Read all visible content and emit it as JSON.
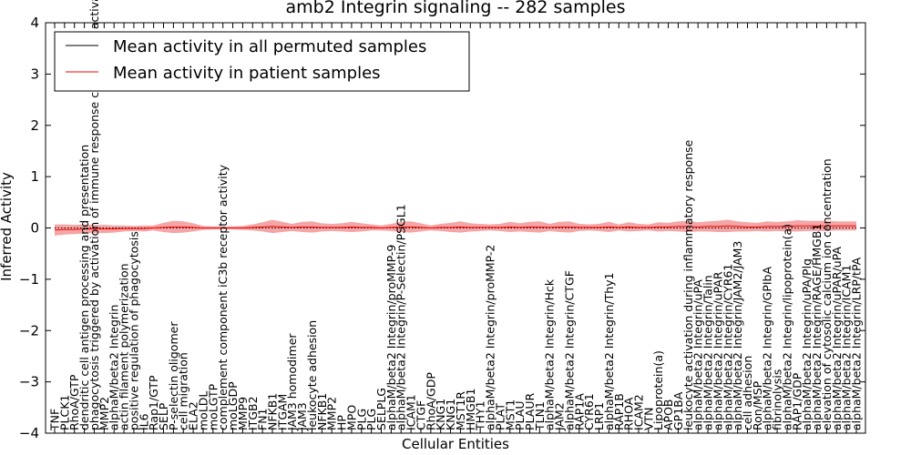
{
  "chart_data": {
    "type": "line",
    "title": "amb2 Integrin signaling -- 282 samples",
    "xlabel": "Cellular Entities",
    "ylabel": "Inferred Activity",
    "ylim": [
      -4,
      4
    ],
    "yticks": [
      -4,
      -3,
      -2,
      -1,
      0,
      1,
      2,
      3,
      4
    ],
    "grid": false,
    "legend_position": "top-left",
    "categories": [
      "TNF",
      "PLCK1",
      "RhoA/GTP",
      "dendritic cell antigen processing and presentation",
      "phagocytosis triggered by activation of immune response cell surface activating receptor",
      "MMP2",
      "alphaM/beta2 Integrin",
      "actin filament polymerization",
      "positive regulation of phagocytosis",
      "IL6",
      "Rap1/GTP",
      "SELP",
      "P-selectin oligomer",
      "cell migration",
      "ELA2",
      "moLDL",
      "moLGTP",
      "complement component iC3b receptor activity",
      "moLGDP",
      "MMP9",
      "ITGB2",
      "FN1",
      "NFKB1",
      "ITGAM",
      "JAM3 homodimer",
      "JAM3",
      "leukocyte adhesion",
      "NFKB1",
      "MMP2",
      "HP",
      "MPO",
      "PLG",
      "PLG",
      "SELPLG",
      "alphaM/beta2 Integrin/proMMP-9",
      "alphaM/beta2 Integrin/P-Selectin/PSGL1",
      "ICAM1",
      "CTGF",
      "RhoA/GDP",
      "KNG1",
      "KNG1",
      "MST1R",
      "HMGB1",
      "THY1",
      "alphaM/beta2 Integrin/proMMP-2",
      "PLAT",
      "MST1",
      "PLAU",
      "PLAUR",
      "TLN1",
      "alphaM/beta2 Integrin/Hck",
      "JAM2",
      "alphaM/beta2 Integrin/CTGF",
      "RAP1A",
      "CYR61",
      "LRP1",
      "alphaM/beta2 Integrin/Thy1",
      "RAP1B",
      "RHOA",
      "ICAM2",
      "VTN",
      "Lipoprotein(a)",
      "APOB",
      "GP1BA",
      "leukocyte activation during inflammatory response",
      "alphaM/beta2 Integrin/uPA",
      "alphaM/beta2 Integrin/Talin",
      "alphaM/beta2 Integrin/uPAR",
      "alphaM/beta2 Integrin/CYR61",
      "alphaM/beta2 Integrin/JAM2/JAM3",
      "cell adhesion",
      "Ron/MSP",
      "alphaM/beta2 Integrin/GPIbA",
      "fibrinolysis",
      "alphaM/beta2 Integrin/lipoprotein(a)",
      "RAP1/GDP",
      "alphaM/beta2 Integrin/uPA/Plg",
      "alphaM/beta2 Integrin/RAGE/HMGB1",
      "elevation of cytosolic calcium ion concentration",
      "alphaM/beta2 Integrin/uPAR/uPA",
      "alphaM/beta2 Integrin/ICAM1",
      "alphaM/beta2 Integrin/LRP/tPA"
    ],
    "series": [
      {
        "name": "Mean activity in all permuted samples",
        "color": "#000000",
        "style": "dotted",
        "values": [
          0,
          0,
          0,
          0,
          0,
          0,
          0,
          0,
          0,
          0,
          0,
          0,
          0,
          0,
          0,
          0,
          0,
          0,
          0,
          0,
          0,
          0,
          0,
          0,
          0,
          0,
          0,
          0,
          0,
          0,
          0,
          0,
          0,
          0,
          0,
          0,
          0,
          0,
          0,
          0,
          0,
          0,
          0,
          0,
          0,
          0,
          0,
          0,
          0,
          0,
          0,
          0,
          0,
          0,
          0,
          0,
          0,
          0,
          0,
          0,
          0,
          0,
          0,
          0,
          0,
          0,
          0,
          0,
          0,
          0,
          0,
          0,
          0,
          0,
          0,
          0,
          0,
          0,
          0,
          0,
          0,
          0
        ]
      },
      {
        "name": "Mean activity in patient samples",
        "color": "#ff0000",
        "band_color": "#f08080",
        "values": [
          -0.04,
          -0.03,
          -0.03,
          -0.02,
          -0.02,
          -0.02,
          -0.02,
          -0.01,
          -0.01,
          -0.01,
          0.0,
          0.01,
          0.02,
          0.02,
          0.01,
          0.0,
          0.0,
          0.0,
          0.0,
          0.0,
          0.01,
          0.02,
          0.03,
          0.02,
          0.01,
          0.02,
          0.02,
          0.01,
          0.01,
          0.01,
          0.02,
          0.01,
          0.01,
          0.0,
          0.01,
          0.02,
          0.02,
          0.01,
          0.0,
          0.01,
          0.01,
          0.02,
          0.01,
          0.01,
          0.01,
          0.01,
          0.02,
          0.01,
          0.02,
          0.02,
          0.01,
          0.02,
          0.02,
          0.01,
          0.01,
          0.01,
          0.02,
          0.01,
          0.02,
          0.01,
          0.01,
          0.02,
          0.02,
          0.03,
          0.03,
          0.02,
          0.03,
          0.03,
          0.04,
          0.03,
          0.02,
          0.02,
          0.03,
          0.03,
          0.03,
          0.04,
          0.04,
          0.04,
          0.04,
          0.04,
          0.04,
          0.04
        ],
        "band": [
          0.11,
          0.1,
          0.09,
          0.09,
          0.08,
          0.08,
          0.07,
          0.06,
          0.05,
          0.06,
          0.05,
          0.09,
          0.12,
          0.11,
          0.08,
          0.04,
          0.03,
          0.03,
          0.03,
          0.04,
          0.06,
          0.09,
          0.13,
          0.1,
          0.07,
          0.1,
          0.11,
          0.08,
          0.07,
          0.08,
          0.1,
          0.08,
          0.06,
          0.05,
          0.07,
          0.1,
          0.11,
          0.08,
          0.05,
          0.07,
          0.09,
          0.11,
          0.08,
          0.07,
          0.06,
          0.07,
          0.1,
          0.08,
          0.1,
          0.11,
          0.07,
          0.1,
          0.11,
          0.07,
          0.06,
          0.07,
          0.1,
          0.06,
          0.09,
          0.07,
          0.06,
          0.09,
          0.08,
          0.1,
          0.11,
          0.09,
          0.1,
          0.11,
          0.12,
          0.1,
          0.09,
          0.08,
          0.1,
          0.09,
          0.1,
          0.11,
          0.1,
          0.1,
          0.1,
          0.09,
          0.09,
          0.09
        ]
      }
    ]
  }
}
